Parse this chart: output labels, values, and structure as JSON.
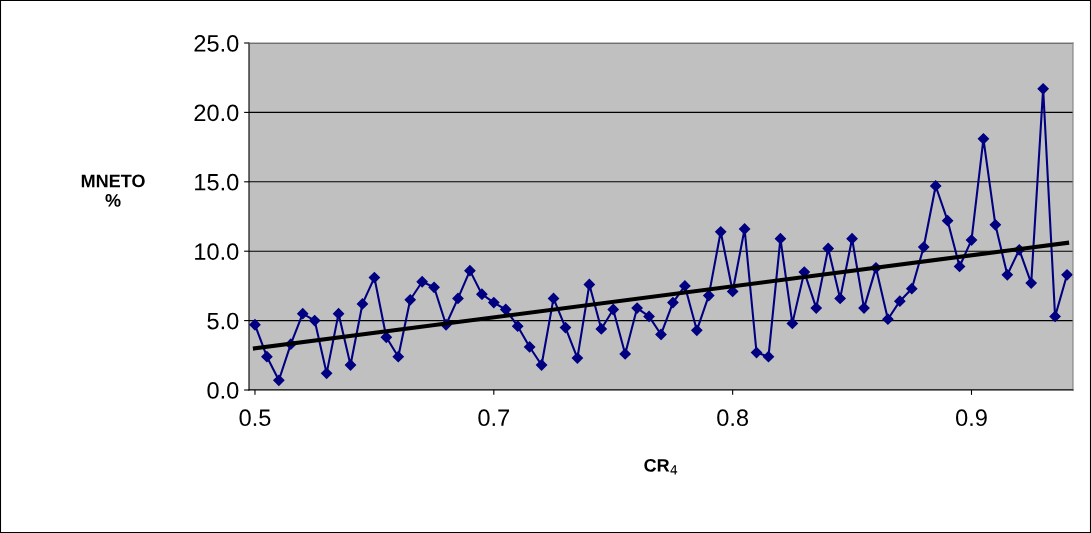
{
  "chart_data": {
    "type": "line",
    "xlabel": "CR$_{4}$",
    "ylabel": "MNETO\n%",
    "categories": [
      "0.5",
      null,
      null,
      null,
      null,
      null,
      null,
      null,
      null,
      null,
      null,
      null,
      null,
      null,
      null,
      null,
      null,
      null,
      null,
      null,
      "0.7",
      null,
      null,
      null,
      null,
      null,
      null,
      null,
      null,
      null,
      null,
      null,
      null,
      null,
      null,
      null,
      null,
      null,
      null,
      null,
      "0.8",
      null,
      null,
      null,
      null,
      null,
      null,
      null,
      null,
      null,
      null,
      null,
      null,
      null,
      null,
      null,
      null,
      null,
      null,
      null,
      "0.9",
      null,
      null,
      null,
      null,
      null,
      null,
      null,
      null
    ],
    "series": [
      {
        "color": "#000080",
        "marker": "diamond",
        "values": [
          4.7,
          2.4,
          0.7,
          3.3,
          5.5,
          5.0,
          1.2,
          5.5,
          1.8,
          6.2,
          8.1,
          3.8,
          2.4,
          6.5,
          7.8,
          7.4,
          4.7,
          6.6,
          8.6,
          6.9,
          6.3,
          5.8,
          4.6,
          3.1,
          1.8,
          6.6,
          4.5,
          2.3,
          7.6,
          4.4,
          5.8,
          2.6,
          5.9,
          5.3,
          4.0,
          6.3,
          7.5,
          4.3,
          6.8,
          11.4,
          7.1,
          11.6,
          2.7,
          2.4,
          10.9,
          4.8,
          8.5,
          5.9,
          10.2,
          6.6,
          10.9,
          5.9,
          8.8,
          5.1,
          6.4,
          7.3,
          10.3,
          14.7,
          12.2,
          8.9,
          10.8,
          18.1,
          11.9,
          8.3,
          10.1,
          7.7,
          21.7,
          5.3,
          8.3
        ]
      },
      {
        "color": "#000000",
        "marker": "none",
        "values": [
          3.0,
          null,
          null,
          null,
          null,
          null,
          null,
          null,
          null,
          null,
          null,
          null,
          null,
          null,
          null,
          null,
          null,
          null,
          null,
          null,
          null,
          null,
          null,
          null,
          null,
          null,
          null,
          null,
          null,
          null,
          null,
          null,
          null,
          null,
          null,
          null,
          null,
          null,
          null,
          null,
          null,
          null,
          null,
          null,
          null,
          null,
          null,
          null,
          null,
          null,
          null,
          null,
          null,
          null,
          null,
          null,
          null,
          null,
          null,
          null,
          null,
          null,
          null,
          null,
          null,
          null,
          null,
          null,
          10.6
        ]
      }
    ],
    "ylim": [
      0,
      25
    ],
    "yticks": [
      {
        "value": 0,
        "label": "0.0"
      },
      {
        "value": 5,
        "label": "5.0"
      },
      {
        "value": 10,
        "label": "10.0"
      },
      {
        "value": 15,
        "label": "15.0"
      },
      {
        "value": 20,
        "label": "20.0"
      },
      {
        "value": 25,
        "label": "25.0"
      }
    ],
    "grid": "y",
    "legend": false
  }
}
